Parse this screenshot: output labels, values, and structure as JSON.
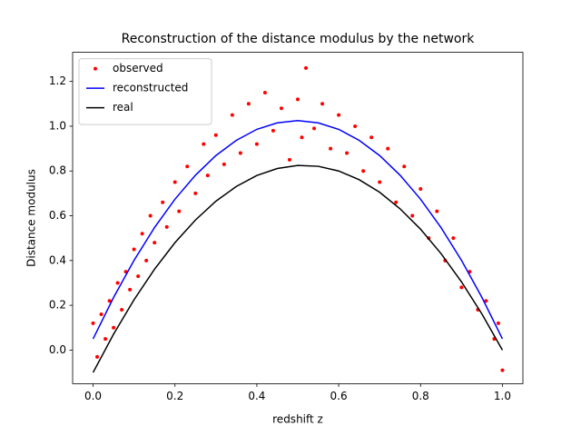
{
  "chart_data": {
    "type": "scatter",
    "title": "Reconstruction of the distance modulus by the network",
    "x_label": "redshift z",
    "y_label": "Distance modulus",
    "xlim": [
      -0.05,
      1.05
    ],
    "ylim": [
      -0.15,
      1.33
    ],
    "xticks": [
      {
        "value": 0,
        "label": "0.0"
      },
      0.2,
      0.4,
      0.6,
      0.8,
      {
        "value": 1,
        "label": "1.0"
      }
    ],
    "yticks": [
      {
        "value": 0,
        "label": "0.0"
      },
      0.2,
      0.4,
      0.6,
      0.8,
      {
        "value": 1,
        "label": "1.0"
      },
      1.2
    ],
    "legend": "upper left",
    "series": [
      {
        "name": "observed",
        "color": "#ff0000",
        "kind": "scatter",
        "x": [
          0.0,
          0.01,
          0.02,
          0.03,
          0.04,
          0.05,
          0.06,
          0.07,
          0.08,
          0.09,
          0.1,
          0.11,
          0.12,
          0.13,
          0.14,
          0.15,
          0.17,
          0.18,
          0.2,
          0.21,
          0.23,
          0.25,
          0.27,
          0.28,
          0.3,
          0.32,
          0.34,
          0.36,
          0.38,
          0.4,
          0.42,
          0.44,
          0.46,
          0.48,
          0.5,
          0.51,
          0.52,
          0.54,
          0.56,
          0.58,
          0.6,
          0.62,
          0.64,
          0.66,
          0.68,
          0.7,
          0.72,
          0.74,
          0.76,
          0.78,
          0.8,
          0.82,
          0.84,
          0.86,
          0.88,
          0.9,
          0.92,
          0.94,
          0.96,
          0.98,
          1.0,
          0.99
        ],
        "values": [
          0.12,
          -0.03,
          0.16,
          0.05,
          0.22,
          0.1,
          0.3,
          0.18,
          0.35,
          0.27,
          0.45,
          0.33,
          0.52,
          0.4,
          0.6,
          0.48,
          0.66,
          0.55,
          0.75,
          0.62,
          0.82,
          0.7,
          0.92,
          0.78,
          0.96,
          0.83,
          1.05,
          0.88,
          1.1,
          0.92,
          1.15,
          0.98,
          1.08,
          0.85,
          1.12,
          0.95,
          1.26,
          0.99,
          1.1,
          0.9,
          1.05,
          0.88,
          1.0,
          0.8,
          0.95,
          0.75,
          0.9,
          0.66,
          0.82,
          0.6,
          0.72,
          0.5,
          0.62,
          0.4,
          0.5,
          0.28,
          0.35,
          0.18,
          0.22,
          0.05,
          -0.09,
          0.12
        ]
      },
      {
        "name": "reconstructed",
        "color": "#0000ff",
        "kind": "line",
        "x": [
          0,
          0.05,
          0.1,
          0.15,
          0.2,
          0.25,
          0.3,
          0.35,
          0.4,
          0.45,
          0.5,
          0.55,
          0.6,
          0.65,
          0.7,
          0.75,
          0.8,
          0.85,
          0.9,
          0.95,
          1
        ],
        "values": [
          0.05,
          0.235,
          0.401,
          0.547,
          0.674,
          0.781,
          0.869,
          0.937,
          0.986,
          1.015,
          1.025,
          1.015,
          0.986,
          0.937,
          0.869,
          0.781,
          0.674,
          0.547,
          0.401,
          0.235,
          0.05
        ]
      },
      {
        "name": "real",
        "color": "#000000",
        "kind": "line",
        "x": [
          0,
          0.05,
          0.1,
          0.15,
          0.2,
          0.25,
          0.3,
          0.35,
          0.4,
          0.45,
          0.5,
          0.55,
          0.6,
          0.65,
          0.7,
          0.75,
          0.8,
          0.85,
          0.9,
          0.95,
          1
        ],
        "values": [
          -0.1,
          0.071,
          0.225,
          0.361,
          0.48,
          0.581,
          0.665,
          0.731,
          0.78,
          0.811,
          0.825,
          0.821,
          0.8,
          0.761,
          0.705,
          0.631,
          0.54,
          0.431,
          0.305,
          0.161,
          0
        ]
      }
    ]
  }
}
